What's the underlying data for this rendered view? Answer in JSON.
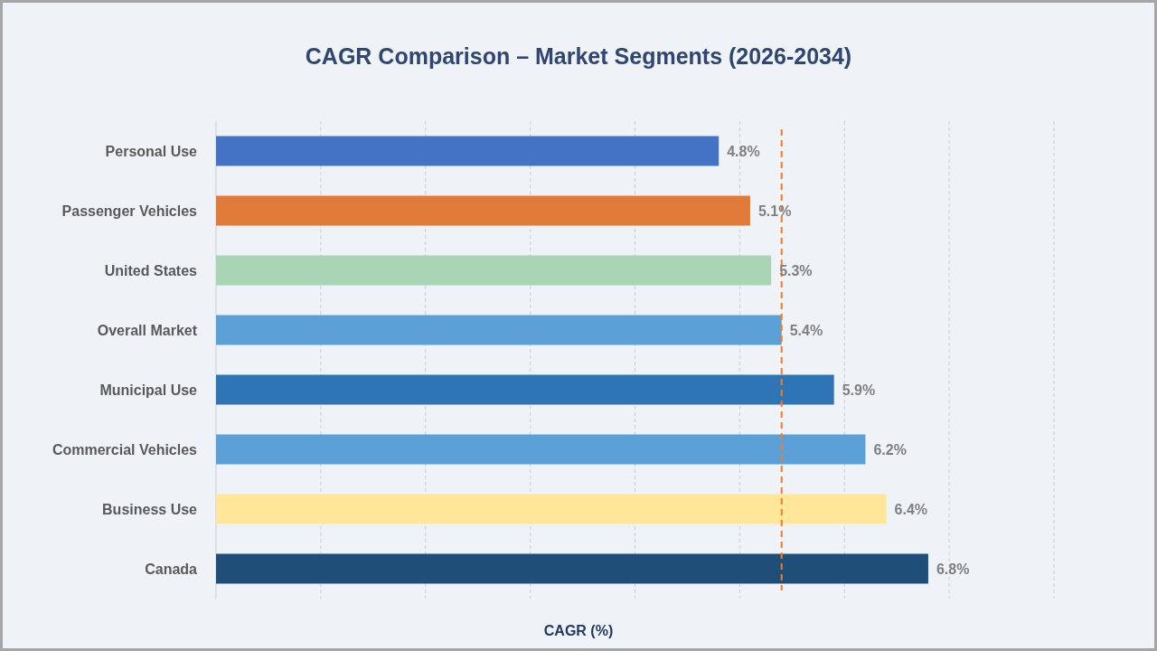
{
  "chart_data": {
    "type": "bar",
    "orientation": "horizontal",
    "title": "CAGR Comparison – Market Segments (2026-2034)",
    "xlabel": "CAGR (%)",
    "categories": [
      "Personal Use",
      "Passenger Vehicles",
      "United States",
      "Overall Market",
      "Municipal Use",
      "Commercial Vehicles",
      "Business Use",
      "Canada"
    ],
    "values": [
      4.8,
      5.1,
      5.3,
      5.4,
      5.9,
      6.2,
      6.4,
      6.8
    ],
    "colors": [
      "#4472c4",
      "#e07b39",
      "#a9d5b5",
      "#5ba1d7",
      "#2e75b6",
      "#5ba1d7",
      "#ffe699",
      "#1f4e79"
    ],
    "value_labels": [
      "4.8%",
      "5.1%",
      "5.3%",
      "5.4%",
      "5.9%",
      "6.2%",
      "6.4%",
      "6.8%"
    ],
    "xlim": [
      0,
      8
    ],
    "xticks": [
      {
        "value": 0,
        "label": null
      },
      {
        "value": 1,
        "label": null
      },
      {
        "value": 2,
        "label": null
      },
      {
        "value": 3,
        "label": null
      },
      {
        "value": 4,
        "label": null
      },
      {
        "value": 5,
        "label": null
      },
      {
        "value": 6,
        "label": null
      },
      {
        "value": 7,
        "label": null
      },
      {
        "value": 8,
        "label": null
      }
    ],
    "grid": "x",
    "tick_labels": "y",
    "ref_lines": [
      {
        "axis": "x",
        "value": 5.4,
        "color": "#ed7d31",
        "line_style": "dashed"
      }
    ]
  }
}
